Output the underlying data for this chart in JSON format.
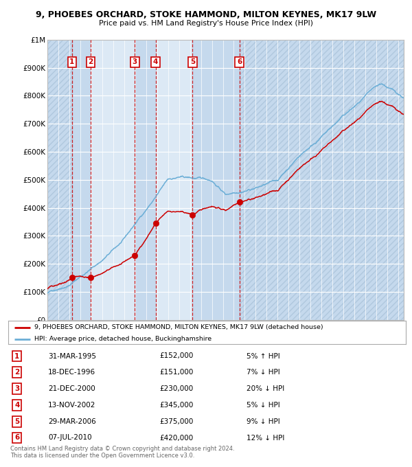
{
  "title1": "9, PHOEBES ORCHARD, STOKE HAMMOND, MILTON KEYNES, MK17 9LW",
  "title2": "Price paid vs. HM Land Registry's House Price Index (HPI)",
  "background_color": "#ffffff",
  "chart_bg_color": "#dce9f5",
  "hpi_line_color": "#6baed6",
  "price_line_color": "#cc0000",
  "sale_marker_color": "#cc0000",
  "dashed_line_color": "#cc0000",
  "ylim": [
    0,
    1000000
  ],
  "yticks": [
    0,
    100000,
    200000,
    300000,
    400000,
    500000,
    600000,
    700000,
    800000,
    900000,
    1000000
  ],
  "ytick_labels": [
    "£0",
    "£100K",
    "£200K",
    "£300K",
    "£400K",
    "£500K",
    "£600K",
    "£700K",
    "£800K",
    "£900K",
    "£1M"
  ],
  "sale_years_f": [
    1995.25,
    1996.96,
    2000.97,
    2002.87,
    2006.24,
    2010.51
  ],
  "sale_prices": [
    152000,
    151000,
    230000,
    345000,
    375000,
    420000
  ],
  "xmin": 1993.0,
  "xmax": 2025.5,
  "legend_label_red": "9, PHOEBES ORCHARD, STOKE HAMMOND, MILTON KEYNES, MK17 9LW (detached house)",
  "legend_label_blue": "HPI: Average price, detached house, Buckinghamshire",
  "footer1": "Contains HM Land Registry data © Crown copyright and database right 2024.",
  "footer2": "This data is licensed under the Open Government Licence v3.0.",
  "table_rows": [
    {
      "num": 1,
      "date": "31-MAR-1995",
      "price": "£152,000",
      "pct": "5% ↑ HPI"
    },
    {
      "num": 2,
      "date": "18-DEC-1996",
      "price": "£151,000",
      "pct": "7% ↓ HPI"
    },
    {
      "num": 3,
      "date": "21-DEC-2000",
      "price": "£230,000",
      "pct": "20% ↓ HPI"
    },
    {
      "num": 4,
      "date": "13-NOV-2002",
      "price": "£345,000",
      "pct": "5% ↓ HPI"
    },
    {
      "num": 5,
      "date": "29-MAR-2006",
      "price": "£375,000",
      "pct": "9% ↓ HPI"
    },
    {
      "num": 6,
      "date": "07-JUL-2010",
      "price": "£420,000",
      "pct": "12% ↓ HPI"
    }
  ]
}
